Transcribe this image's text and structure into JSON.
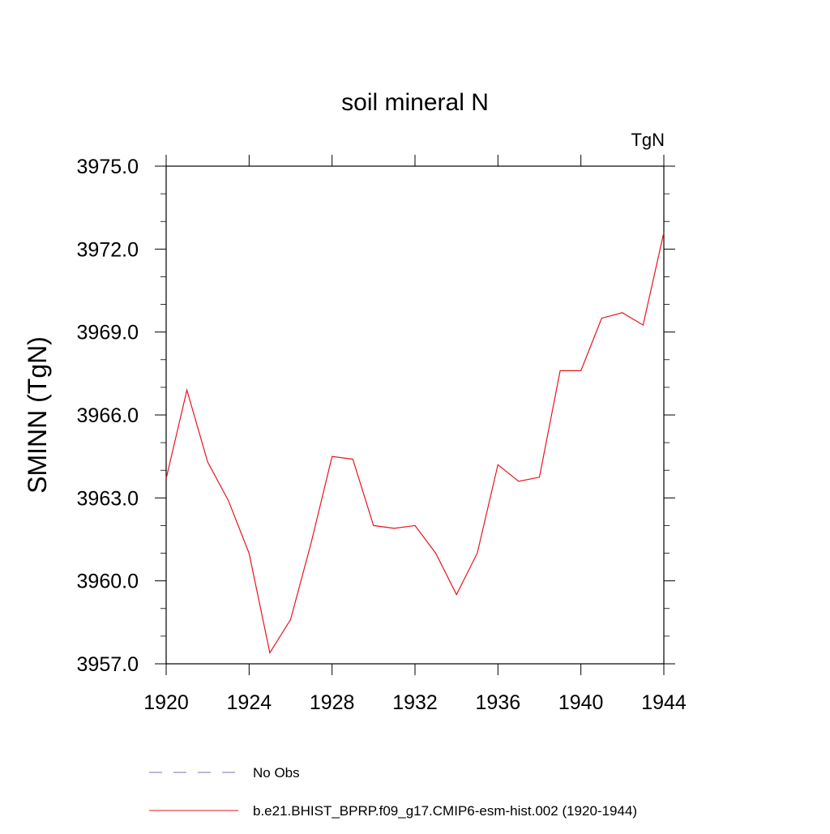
{
  "chart_data": {
    "type": "line",
    "title": "soil mineral N",
    "units_label": "TgN",
    "ylabel": "SMINN  (TgN)",
    "xlabel": "",
    "xlim": [
      1920,
      1944
    ],
    "ylim": [
      3957.0,
      3975.0
    ],
    "x_ticks": [
      1920,
      1924,
      1928,
      1932,
      1936,
      1940,
      1944
    ],
    "x_tick_labels": [
      "1920",
      "1924",
      "1928",
      "1932",
      "1936",
      "1940",
      "1944"
    ],
    "y_ticks": [
      3957.0,
      3960.0,
      3963.0,
      3966.0,
      3969.0,
      3972.0,
      3975.0
    ],
    "y_tick_labels": [
      "3957.0",
      "3960.0",
      "3963.0",
      "3966.0",
      "3969.0",
      "3972.0",
      "3975.0"
    ],
    "grid": false,
    "legend_position": "bottom",
    "series": [
      {
        "name": "b.e21.BHIST_BPRP.f09_g17.CMIP6-esm-hist.002 (1920-1944)",
        "color": "#e8141c",
        "style": "solid",
        "x": [
          1920,
          1921,
          1922,
          1923,
          1924,
          1925,
          1926,
          1927,
          1928,
          1929,
          1930,
          1931,
          1932,
          1933,
          1934,
          1935,
          1936,
          1937,
          1938,
          1939,
          1940,
          1941,
          1942,
          1943,
          1944
        ],
        "values": [
          3963.7,
          3966.9,
          3964.3,
          3962.9,
          3961.0,
          3957.4,
          3958.6,
          3961.4,
          3964.5,
          3964.4,
          3962.0,
          3961.9,
          3962.0,
          3961.0,
          3959.5,
          3961.0,
          3964.2,
          3963.6,
          3963.75,
          3967.6,
          3967.6,
          3969.5,
          3969.7,
          3969.25,
          3972.6
        ]
      },
      {
        "name": "No Obs",
        "color": "#7b6fb0",
        "style": "dashed",
        "x": [],
        "values": []
      }
    ]
  }
}
